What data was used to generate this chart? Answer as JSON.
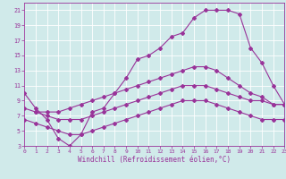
{
  "xlabel": "Windchill (Refroidissement éolien,°C)",
  "background_color": "#d0eaea",
  "line_color": "#993399",
  "grid_color": "#aacccc",
  "xlim": [
    0,
    23
  ],
  "ylim": [
    3,
    22
  ],
  "xticks": [
    0,
    1,
    2,
    3,
    4,
    5,
    6,
    7,
    8,
    9,
    10,
    11,
    12,
    13,
    14,
    15,
    16,
    17,
    18,
    19,
    20,
    21,
    22,
    23
  ],
  "yticks": [
    3,
    5,
    7,
    9,
    11,
    13,
    15,
    17,
    19,
    21
  ],
  "line1_x": [
    0,
    1,
    2,
    3,
    4,
    5,
    6,
    7,
    8,
    9,
    10,
    11,
    12,
    13,
    14,
    15,
    16,
    17,
    18,
    19,
    20,
    21,
    22,
    23
  ],
  "line1_y": [
    10,
    8,
    6.5,
    4,
    3,
    4.5,
    7.5,
    8,
    10,
    12,
    14.5,
    15,
    16,
    17.5,
    18,
    20,
    21,
    21,
    21,
    20.5,
    16,
    14,
    11,
    8.5
  ],
  "line2_x": [
    1,
    2,
    3,
    4,
    5,
    6,
    7,
    8,
    9,
    10,
    11,
    12,
    13,
    14,
    15,
    16,
    17,
    18,
    19,
    20,
    21,
    22,
    23
  ],
  "line2_y": [
    7.5,
    7.5,
    7.5,
    8.0,
    8.5,
    9.0,
    9.5,
    10.0,
    10.5,
    11.0,
    11.5,
    12.0,
    12.5,
    13.0,
    13.5,
    13.5,
    13.0,
    12.0,
    11.0,
    10.0,
    9.5,
    8.5,
    8.5
  ],
  "line3_x": [
    0,
    1,
    2,
    3,
    4,
    5,
    6,
    7,
    8,
    9,
    10,
    11,
    12,
    13,
    14,
    15,
    16,
    17,
    18,
    19,
    20,
    21,
    22,
    23
  ],
  "line3_y": [
    8.0,
    7.5,
    7.0,
    6.5,
    6.5,
    6.5,
    7.0,
    7.5,
    8.0,
    8.5,
    9.0,
    9.5,
    10.0,
    10.5,
    11.0,
    11.0,
    11.0,
    10.5,
    10.0,
    9.5,
    9.0,
    9.0,
    8.5,
    8.5
  ],
  "line4_x": [
    0,
    1,
    2,
    3,
    4,
    5,
    6,
    7,
    8,
    9,
    10,
    11,
    12,
    13,
    14,
    15,
    16,
    17,
    18,
    19,
    20,
    21,
    22,
    23
  ],
  "line4_y": [
    6.5,
    6.0,
    5.5,
    5.0,
    4.5,
    4.5,
    5.0,
    5.5,
    6.0,
    6.5,
    7.0,
    7.5,
    8.0,
    8.5,
    9.0,
    9.0,
    9.0,
    8.5,
    8.0,
    7.5,
    7.0,
    6.5,
    6.5,
    6.5
  ],
  "tick_color": "#993399",
  "label_color": "#993399",
  "spine_color": "#993399",
  "bottom_bar_color": "#993399"
}
